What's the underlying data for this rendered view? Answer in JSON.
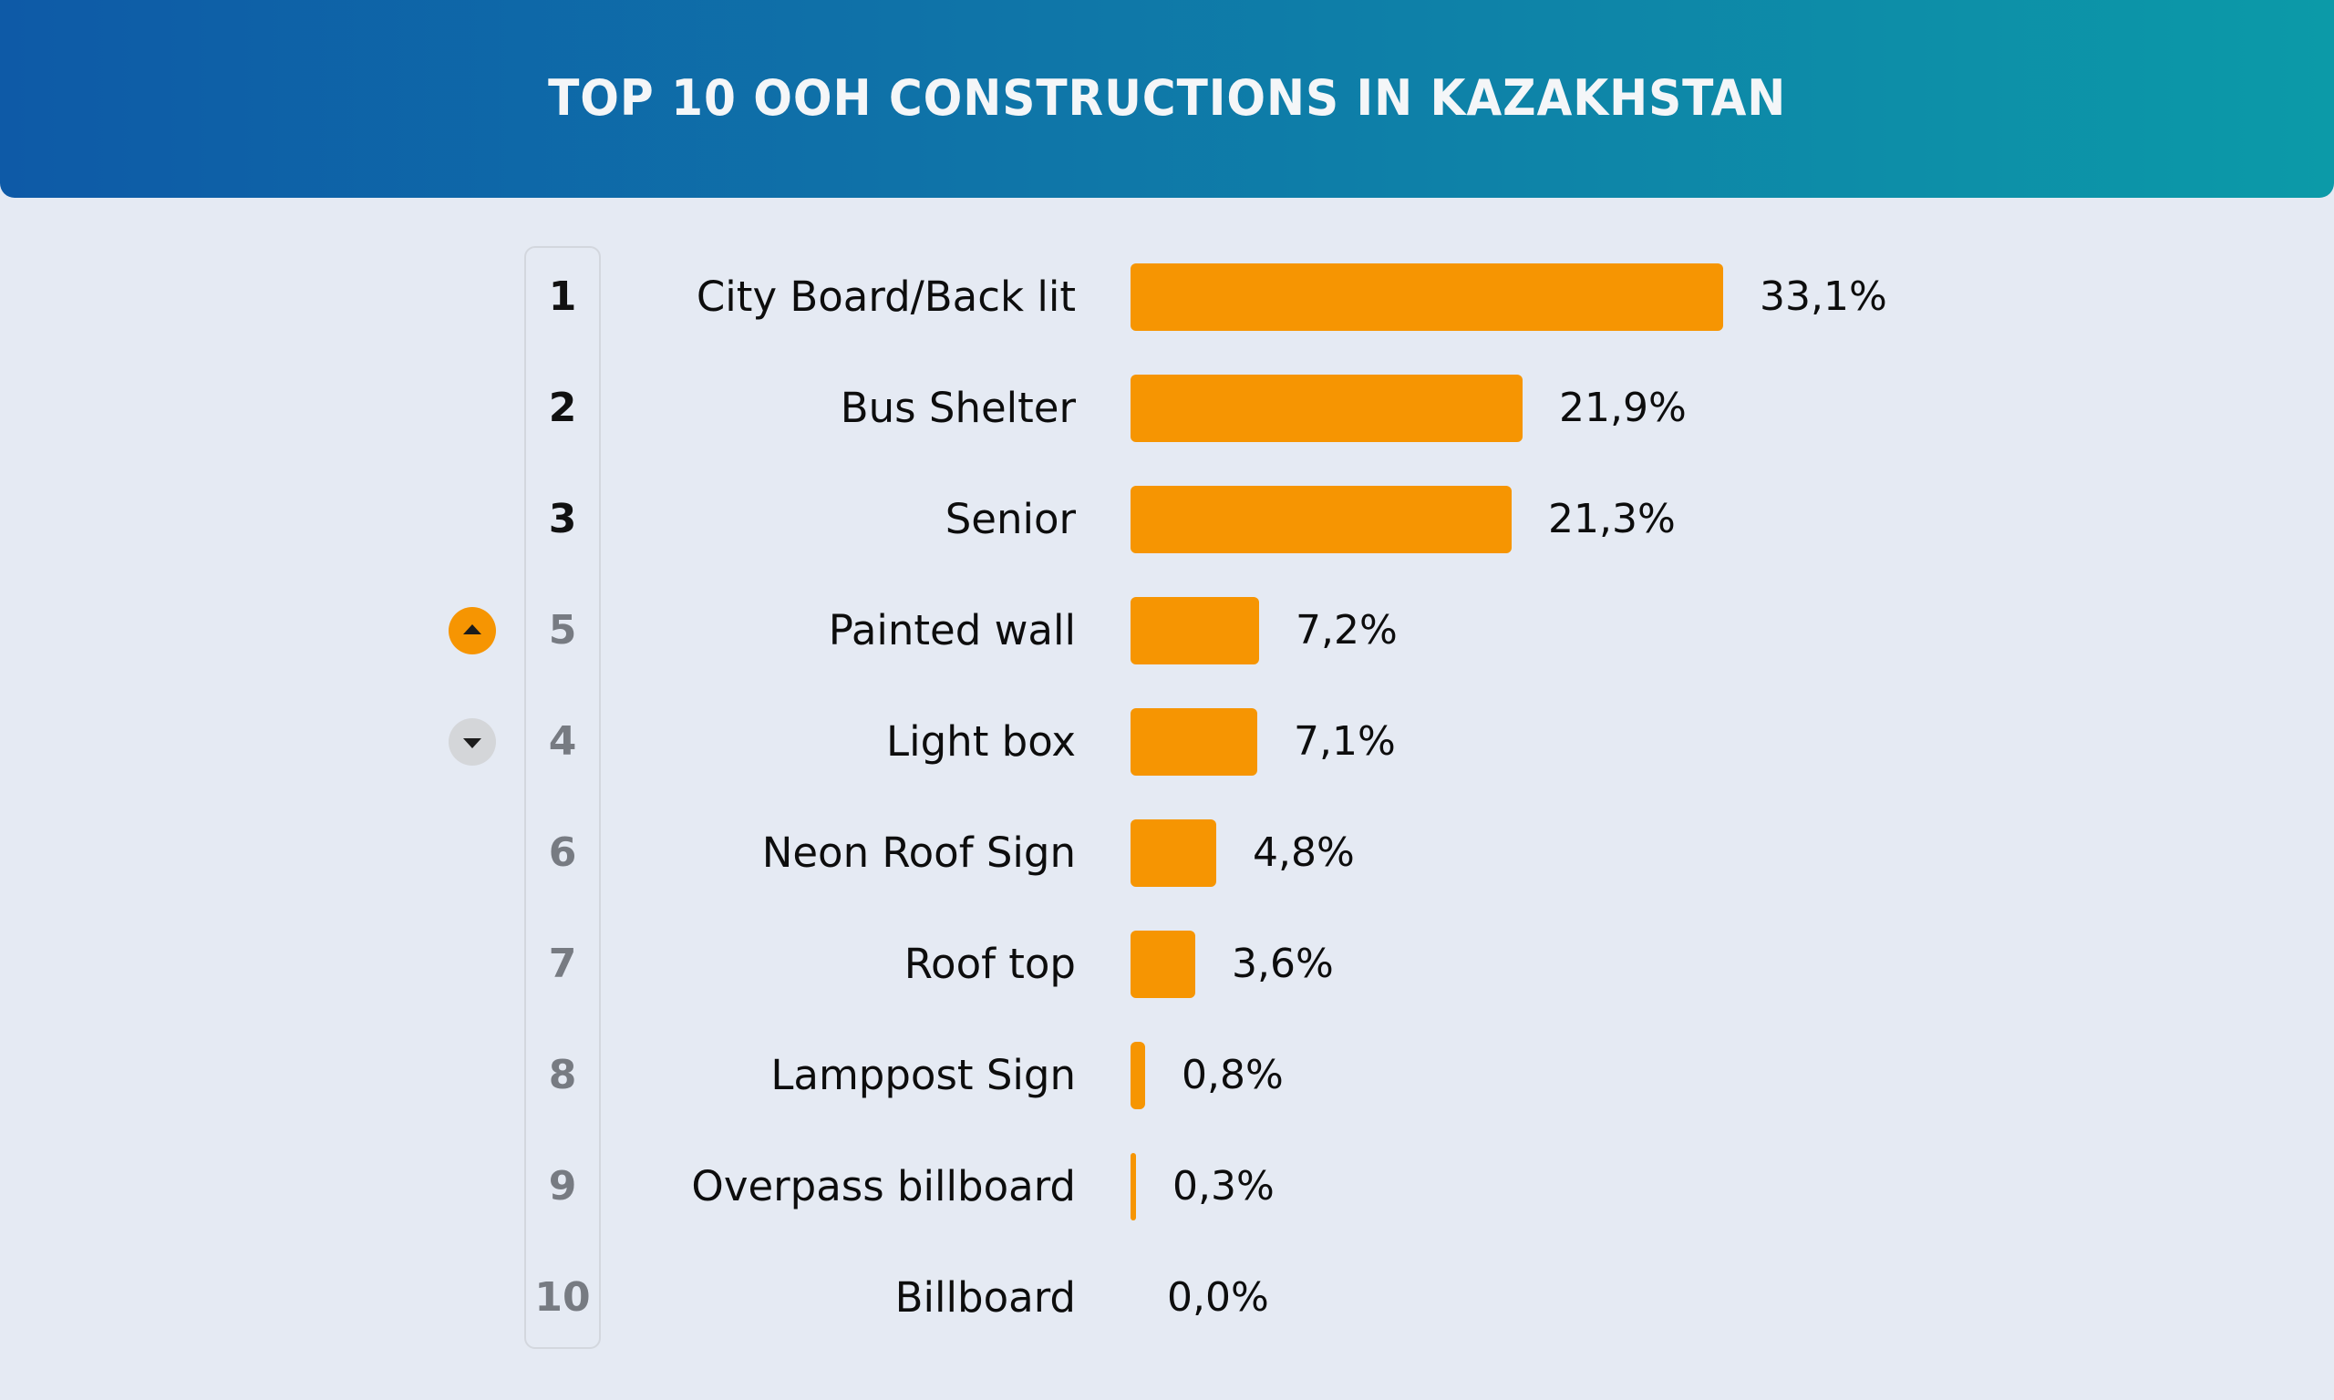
{
  "header": {
    "title": "TOP 10 OOH CONSTRUCTIONS IN KAZAKHSTAN"
  },
  "colors": {
    "header_gradient_start": "#0e5aa7",
    "header_gradient_end": "#0c9aa8",
    "bar": "#f69502",
    "background": "#e5eaf3",
    "badge_up": "#f69502",
    "badge_down": "#d4d6d9",
    "rank_top": "#111111",
    "rank_rest": "#777b82"
  },
  "rows": [
    {
      "rank": "1",
      "label": "City Board/Back lit",
      "value": "33,1%",
      "change": "none"
    },
    {
      "rank": "2",
      "label": "Bus Shelter",
      "value": "21,9%",
      "change": "none"
    },
    {
      "rank": "3",
      "label": "Senior",
      "value": "21,3%",
      "change": "none"
    },
    {
      "rank": "5",
      "label": "Painted wall",
      "value": "7,2%",
      "change": "up"
    },
    {
      "rank": "4",
      "label": "Light box",
      "value": "7,1%",
      "change": "down"
    },
    {
      "rank": "6",
      "label": "Neon Roof Sign",
      "value": "4,8%",
      "change": "none"
    },
    {
      "rank": "7",
      "label": "Roof top",
      "value": "3,6%",
      "change": "none"
    },
    {
      "rank": "8",
      "label": "Lamppost Sign",
      "value": "0,8%",
      "change": "none"
    },
    {
      "rank": "9",
      "label": "Overpass billboard",
      "value": "0,3%",
      "change": "none"
    },
    {
      "rank": "10",
      "label": "Billboard",
      "value": "0,0%",
      "change": "none"
    }
  ],
  "chart_data": {
    "type": "bar",
    "orientation": "horizontal",
    "title": "TOP 10 OOH CONSTRUCTIONS IN KAZAKHSTAN",
    "categories": [
      "City Board/Back lit",
      "Bus Shelter",
      "Senior",
      "Painted wall",
      "Light box",
      "Neon Roof Sign",
      "Roof top",
      "Lamppost Sign",
      "Overpass billboard",
      "Billboard"
    ],
    "ranks": [
      1,
      2,
      3,
      5,
      4,
      6,
      7,
      8,
      9,
      10
    ],
    "rank_change": [
      "none",
      "none",
      "none",
      "up",
      "down",
      "none",
      "none",
      "none",
      "none",
      "none"
    ],
    "values": [
      33.1,
      21.9,
      21.3,
      7.2,
      7.1,
      4.8,
      3.6,
      0.8,
      0.3,
      0.0
    ],
    "value_labels": [
      "33,1%",
      "21,9%",
      "21,3%",
      "7,2%",
      "7,1%",
      "4,8%",
      "3,6%",
      "0,8%",
      "0,3%",
      "0,0%"
    ],
    "unit": "%",
    "xlabel": "",
    "ylabel": "",
    "grid": false,
    "legend": "none"
  }
}
